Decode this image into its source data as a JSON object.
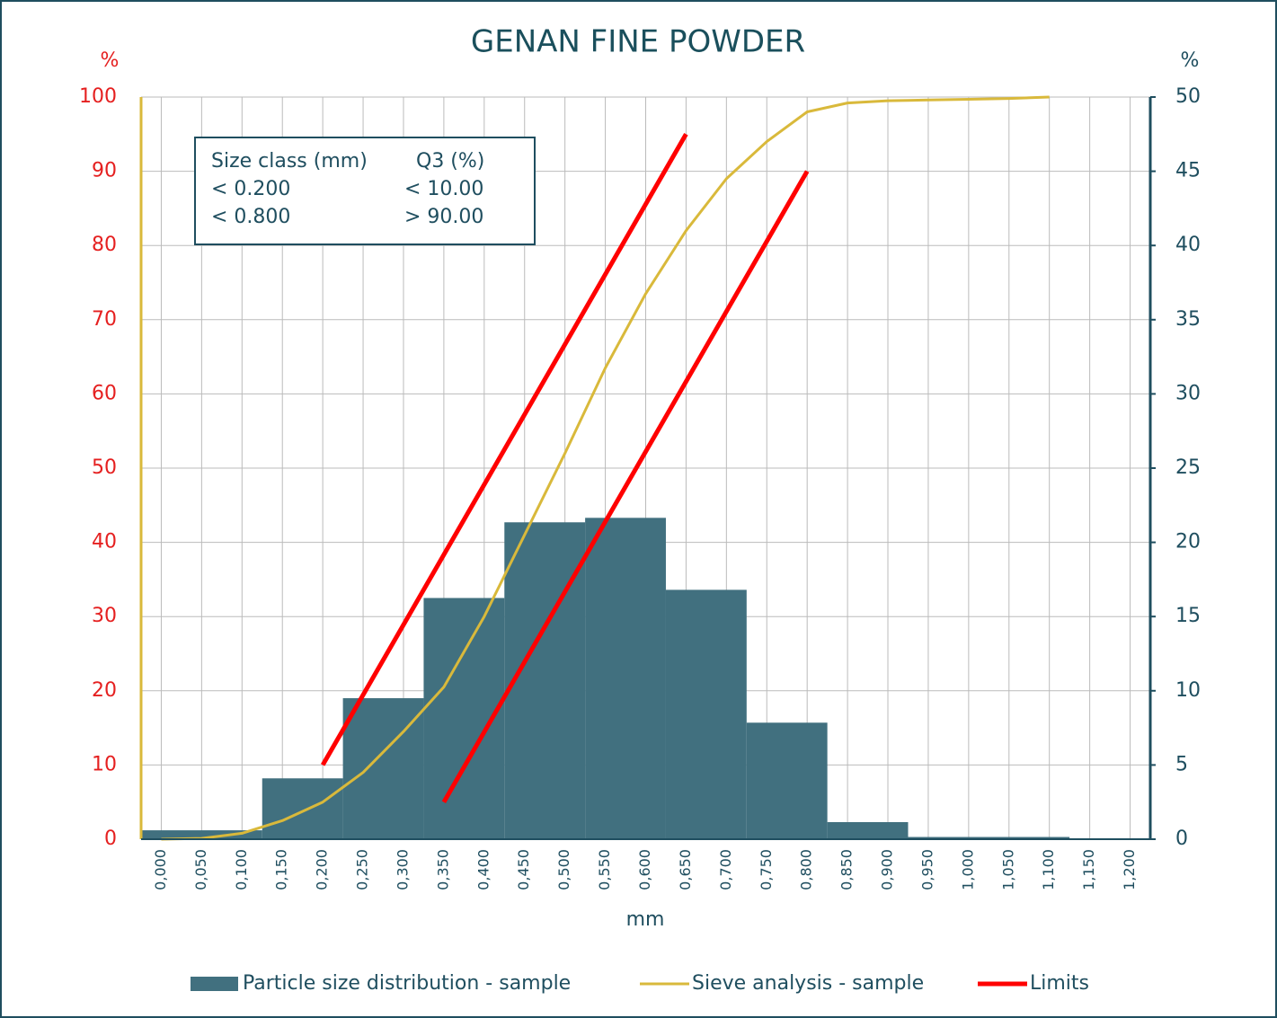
{
  "chart_data": {
    "type": "combo",
    "title": "GENAN FINE POWDER",
    "y_unit": "%",
    "y2_unit": "%",
    "xlabel": "mm",
    "xlim": [
      -0.025,
      1.225
    ],
    "xticks": [
      {
        "value": 0,
        "label": "0,000"
      },
      {
        "value": 0.05,
        "label": "0,050"
      },
      {
        "value": 0.1,
        "label": "0,100"
      },
      {
        "value": 0.15,
        "label": "0,150"
      },
      {
        "value": 0.2,
        "label": "0,200"
      },
      {
        "value": 0.25,
        "label": "0,250"
      },
      {
        "value": 0.3,
        "label": "0,300"
      },
      {
        "value": 0.35,
        "label": "0,350"
      },
      {
        "value": 0.4,
        "label": "0,400"
      },
      {
        "value": 0.45,
        "label": "0,450"
      },
      {
        "value": 0.5,
        "label": "0,500"
      },
      {
        "value": 0.55,
        "label": "0,550"
      },
      {
        "value": 0.6,
        "label": "0,600"
      },
      {
        "value": 0.65,
        "label": "0,650"
      },
      {
        "value": 0.7,
        "label": "0,700"
      },
      {
        "value": 0.75,
        "label": "0,750"
      },
      {
        "value": 0.8,
        "label": "0,800"
      },
      {
        "value": 0.85,
        "label": "0,850"
      },
      {
        "value": 0.9,
        "label": "0,900"
      },
      {
        "value": 0.95,
        "label": "0,950"
      },
      {
        "value": 1.0,
        "label": "1,000"
      },
      {
        "value": 1.05,
        "label": "1,050"
      },
      {
        "value": 1.1,
        "label": "1,100"
      },
      {
        "value": 1.15,
        "label": "1,150"
      },
      {
        "value": 1.2,
        "label": "1,200"
      }
    ],
    "ylim": [
      0,
      100
    ],
    "yticks": [
      0,
      10,
      20,
      30,
      40,
      50,
      60,
      70,
      80,
      90,
      100
    ],
    "y2lim": [
      0,
      50
    ],
    "y2ticks": [
      0,
      5,
      10,
      15,
      20,
      25,
      30,
      35,
      40,
      45,
      50
    ],
    "grid": true,
    "series": [
      {
        "name": "Particle size distribution - sample",
        "type": "bar",
        "axis": "y2",
        "color": "#41707f",
        "bins": [
          -0.025,
          0.125,
          0.225,
          0.325,
          0.425,
          0.525,
          0.625,
          0.725,
          0.825,
          0.925,
          1.125,
          1.225
        ],
        "values": [
          0.6,
          4.1,
          9.5,
          16.25,
          21.35,
          21.65,
          16.8,
          7.85,
          1.15,
          0.15,
          0.05
        ]
      },
      {
        "name": "Sieve analysis - sample",
        "type": "line",
        "color": "#d9b93b",
        "x": [
          0,
          0.05,
          0.1,
          0.15,
          0.2,
          0.25,
          0.3,
          0.35,
          0.4,
          0.45,
          0.5,
          0.55,
          0.6,
          0.65,
          0.7,
          0.75,
          0.8,
          0.85,
          0.9,
          0.95,
          1.0,
          1.05,
          1.1
        ],
        "values": [
          0,
          0.1,
          0.8,
          2.5,
          5,
          9,
          14.5,
          20.5,
          30,
          41,
          52,
          63.5,
          73.5,
          82,
          89,
          94,
          98,
          99.2,
          99.5,
          99.6,
          99.7,
          99.8,
          100
        ]
      },
      {
        "name": "Limits",
        "type": "line",
        "color": "#ff0000",
        "x": [
          0.2,
          0.65,
          null,
          0.35,
          0.8
        ],
        "values": [
          10,
          95,
          null,
          5,
          90
        ]
      }
    ],
    "info_table": {
      "header": [
        "Size class (mm)",
        "Q3 (%)"
      ],
      "rows": [
        [
          "< 0.200",
          "< 10.00"
        ],
        [
          "< 0.800",
          "> 90.00"
        ]
      ]
    }
  }
}
